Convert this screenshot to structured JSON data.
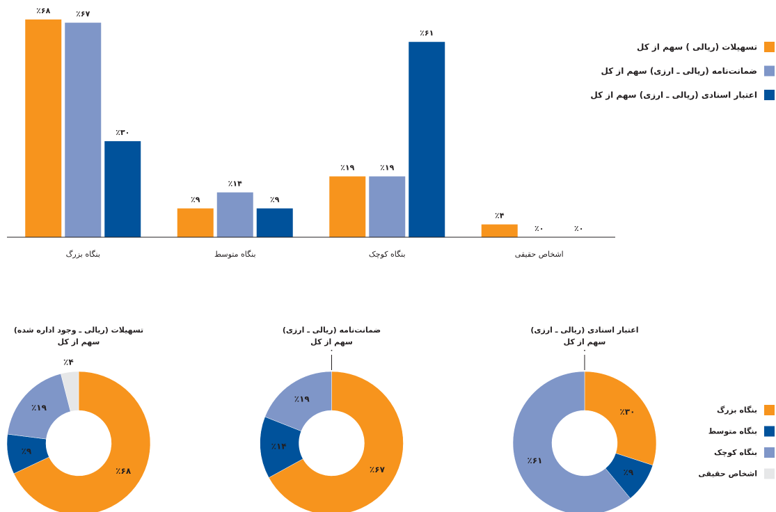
{
  "chart_data": [
    {
      "type": "bar",
      "categories": [
        "بنگاه بزرگ",
        "بنگاه متوسط",
        "بنگاه کوچک",
        "اشخاص حقیقی"
      ],
      "series": [
        {
          "name": "تسهیلات (ریالی ) سهم از کل",
          "color": "#f7941d",
          "values": [
            68,
            9,
            19,
            4
          ],
          "value_labels": [
            "٪۶۸",
            "٪۹",
            "٪۱۹",
            "٪۴"
          ]
        },
        {
          "name": "ضمانت‌نامه (ریالی ـ ارزی) سهم از کل",
          "color": "#7f96c8",
          "values": [
            67,
            14,
            19,
            0
          ],
          "value_labels": [
            "٪۶۷",
            "٪۱۴",
            "٪۱۹",
            "٪۰"
          ]
        },
        {
          "name": "اعتبار اسنادی (ریالی ـ ارزی) سهم از کل",
          "color": "#00529b",
          "values": [
            30,
            9,
            61,
            0
          ],
          "value_labels": [
            "٪۳۰",
            "٪۹",
            "٪۶۱",
            "٪۰"
          ]
        }
      ]
    },
    {
      "type": "donut",
      "title": "تسهیلات (ریالی ـ وجود اداره شده)",
      "subtitle": "سهم از کل",
      "categories": [
        "بنگاه بزرگ",
        "بنگاه متوسط",
        "بنگاه کوچک",
        "اشخاص حقیقی"
      ],
      "colors": [
        "#f7941d",
        "#00529b",
        "#7f96c8",
        "#e6e7e8"
      ],
      "values": [
        68,
        9,
        19,
        4
      ],
      "value_labels": [
        "٪۶۸",
        "٪۹",
        "٪۱۹",
        "٪۴"
      ]
    },
    {
      "type": "donut",
      "title": "ضمانت‌نامه (ریالی ـ ارزی)",
      "subtitle": "سهم از کل",
      "categories": [
        "بنگاه بزرگ",
        "بنگاه متوسط",
        "بنگاه کوچک",
        "اشخاص حقیقی"
      ],
      "colors": [
        "#f7941d",
        "#00529b",
        "#7f96c8",
        "#e6e7e8"
      ],
      "values": [
        67,
        14,
        19,
        0
      ],
      "value_labels": [
        "٪۶۷",
        "٪۱۴",
        "٪۱۹",
        "۰"
      ]
    },
    {
      "type": "donut",
      "title": "اعتبار اسنادی (ریالی ـ ارزی)",
      "subtitle": "سهم از کل",
      "categories": [
        "بنگاه بزرگ",
        "بنگاه متوسط",
        "بنگاه کوچک",
        "اشخاص حقیقی"
      ],
      "colors": [
        "#f7941d",
        "#00529b",
        "#7f96c8",
        "#e6e7e8"
      ],
      "values": [
        30,
        9,
        61,
        0
      ],
      "value_labels": [
        "٪۳۰",
        "٪۹",
        "٪۶۱",
        "۰"
      ]
    }
  ]
}
